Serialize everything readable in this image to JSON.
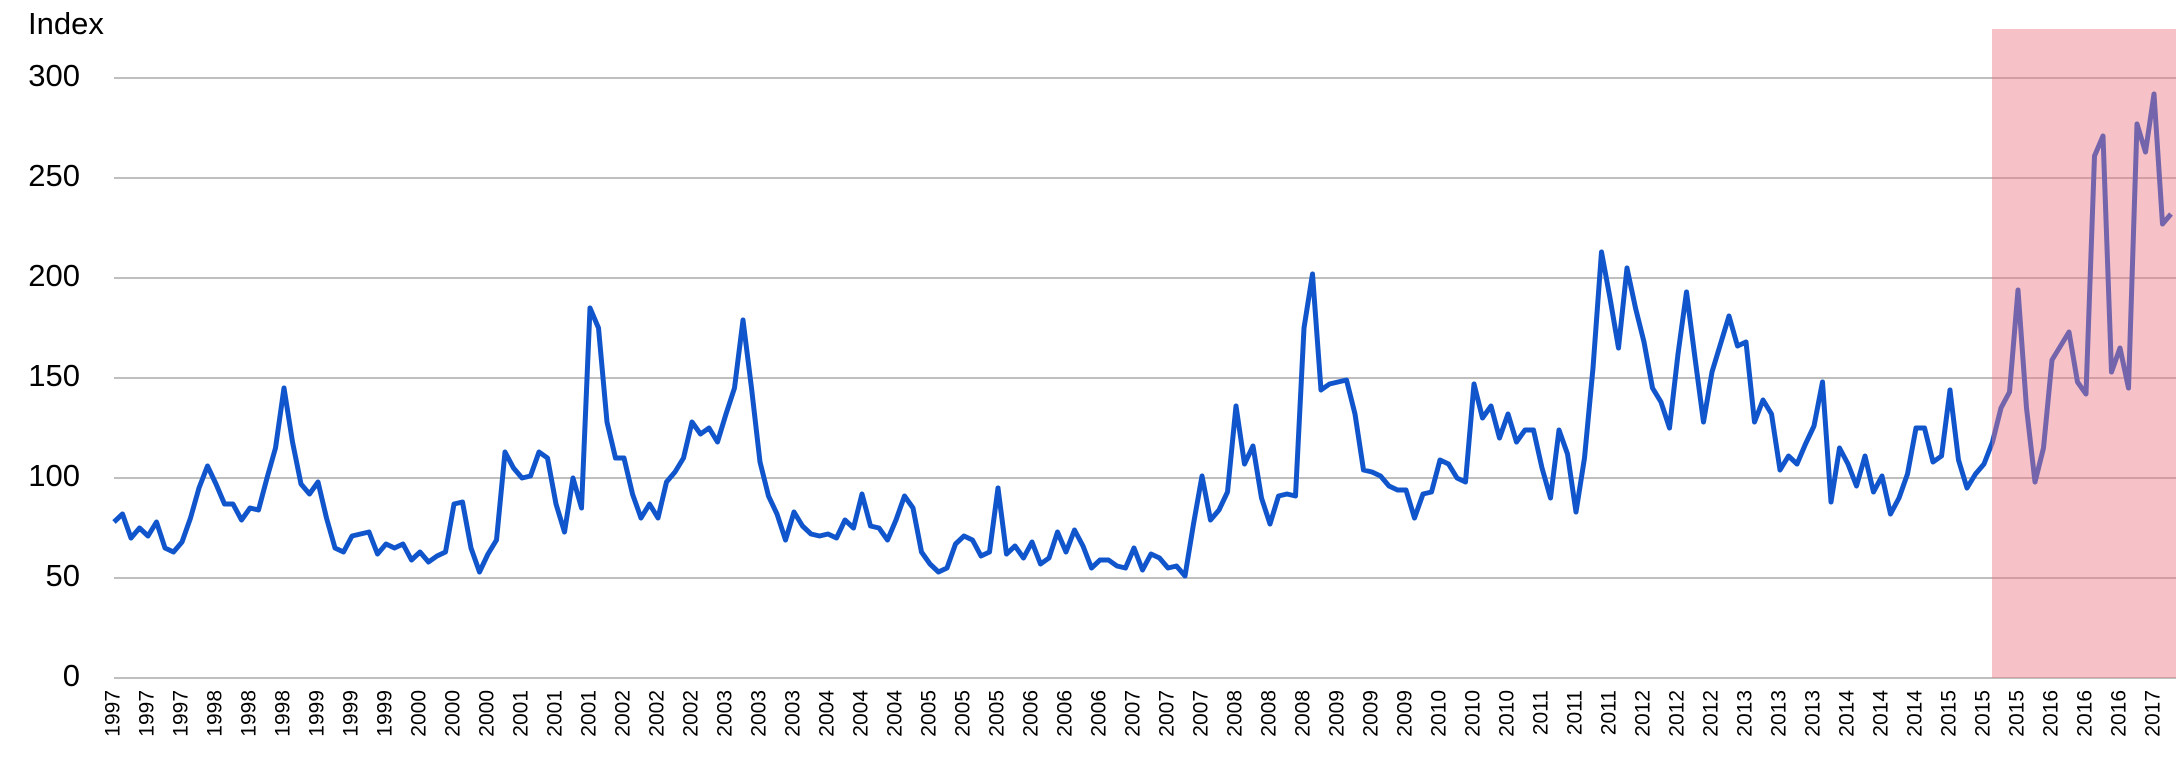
{
  "chart_data": {
    "type": "line",
    "y_label": "Index",
    "categories": [
      "1997",
      null,
      null,
      null,
      "1997",
      null,
      null,
      null,
      "1997",
      null,
      null,
      null,
      "1998",
      null,
      null,
      null,
      "1998",
      null,
      null,
      null,
      "1998",
      null,
      null,
      null,
      "1999",
      null,
      null,
      null,
      "1999",
      null,
      null,
      null,
      "1999",
      null,
      null,
      null,
      "2000",
      null,
      null,
      null,
      "2000",
      null,
      null,
      null,
      "2000",
      null,
      null,
      null,
      "2001",
      null,
      null,
      null,
      "2001",
      null,
      null,
      null,
      "2001",
      null,
      null,
      null,
      "2002",
      null,
      null,
      null,
      "2002",
      null,
      null,
      null,
      "2002",
      null,
      null,
      null,
      "2003",
      null,
      null,
      null,
      "2003",
      null,
      null,
      null,
      "2003",
      null,
      null,
      null,
      "2004",
      null,
      null,
      null,
      "2004",
      null,
      null,
      null,
      "2004",
      null,
      null,
      null,
      "2005",
      null,
      null,
      null,
      "2005",
      null,
      null,
      null,
      "2005",
      null,
      null,
      null,
      "2006",
      null,
      null,
      null,
      "2006",
      null,
      null,
      null,
      "2006",
      null,
      null,
      null,
      "2007",
      null,
      null,
      null,
      "2007",
      null,
      null,
      null,
      "2007",
      null,
      null,
      null,
      "2008",
      null,
      null,
      null,
      "2008",
      null,
      null,
      null,
      "2008",
      null,
      null,
      null,
      "2009",
      null,
      null,
      null,
      "2009",
      null,
      null,
      null,
      "2009",
      null,
      null,
      null,
      "2010",
      null,
      null,
      null,
      "2010",
      null,
      null,
      null,
      "2010",
      null,
      null,
      null,
      "2011",
      null,
      null,
      null,
      "2011",
      null,
      null,
      null,
      "2011",
      null,
      null,
      null,
      "2012",
      null,
      null,
      null,
      "2012",
      null,
      null,
      null,
      "2012",
      null,
      null,
      null,
      "2013",
      null,
      null,
      null,
      "2013",
      null,
      null,
      null,
      "2013",
      null,
      null,
      null,
      "2014",
      null,
      null,
      null,
      "2014",
      null,
      null,
      null,
      "2014",
      null,
      null,
      null,
      "2015",
      null,
      null,
      null,
      "2015",
      null,
      null,
      null,
      "2015",
      null,
      null,
      null,
      "2016",
      null,
      null,
      null,
      "2016",
      null,
      null,
      null,
      "2016",
      null,
      null,
      null,
      "2017",
      null,
      null
    ],
    "series": [
      {
        "name": "Index",
        "color": "#1155cc",
        "values": [
          78,
          82,
          70,
          75,
          71,
          78,
          65,
          63,
          68,
          80,
          95,
          106,
          97,
          87,
          87,
          79,
          85,
          84,
          100,
          115,
          145,
          118,
          97,
          92,
          98,
          80,
          65,
          63,
          71,
          72,
          73,
          62,
          67,
          65,
          67,
          59,
          63,
          58,
          61,
          63,
          87,
          88,
          65,
          53,
          62,
          69,
          113,
          105,
          100,
          101,
          113,
          110,
          87,
          73,
          100,
          85,
          185,
          175,
          128,
          110,
          110,
          92,
          80,
          87,
          80,
          98,
          103,
          110,
          128,
          122,
          125,
          118,
          132,
          145,
          179,
          145,
          108,
          91,
          82,
          69,
          83,
          76,
          72,
          71,
          72,
          70,
          79,
          75,
          92,
          76,
          75,
          69,
          79,
          91,
          85,
          63,
          57,
          53,
          55,
          67,
          71,
          69,
          61,
          63,
          95,
          62,
          66,
          60,
          68,
          57,
          60,
          73,
          63,
          74,
          66,
          55,
          59,
          59,
          56,
          55,
          65,
          54,
          62,
          60,
          55,
          56,
          51,
          77,
          101,
          79,
          84,
          93,
          136,
          107,
          116,
          90,
          77,
          91,
          92,
          91,
          175,
          202,
          144,
          147,
          148,
          149,
          132,
          104,
          103,
          101,
          96,
          94,
          94,
          80,
          92,
          93,
          109,
          107,
          100,
          98,
          147,
          130,
          136,
          120,
          132,
          118,
          124,
          124,
          105,
          90,
          124,
          112,
          83,
          110,
          155,
          213,
          190,
          165,
          205,
          185,
          168,
          145,
          138,
          125,
          162,
          193,
          160,
          128,
          153,
          167,
          181,
          166,
          168,
          128,
          139,
          132,
          104,
          111,
          107,
          117,
          126,
          148,
          88,
          115,
          107,
          96,
          111,
          93,
          101,
          82,
          90,
          102,
          125,
          125,
          108,
          111,
          144,
          109,
          95,
          102,
          107,
          118,
          135,
          143,
          194,
          135,
          98,
          115,
          159,
          166,
          173,
          148,
          142,
          261,
          271,
          153,
          165,
          145,
          277,
          263,
          292,
          227,
          232
        ]
      }
    ],
    "ylim": [
      0,
      300
    ],
    "yticks": [
      0,
      50,
      100,
      150,
      200,
      250,
      300
    ],
    "grid": true
  }
}
